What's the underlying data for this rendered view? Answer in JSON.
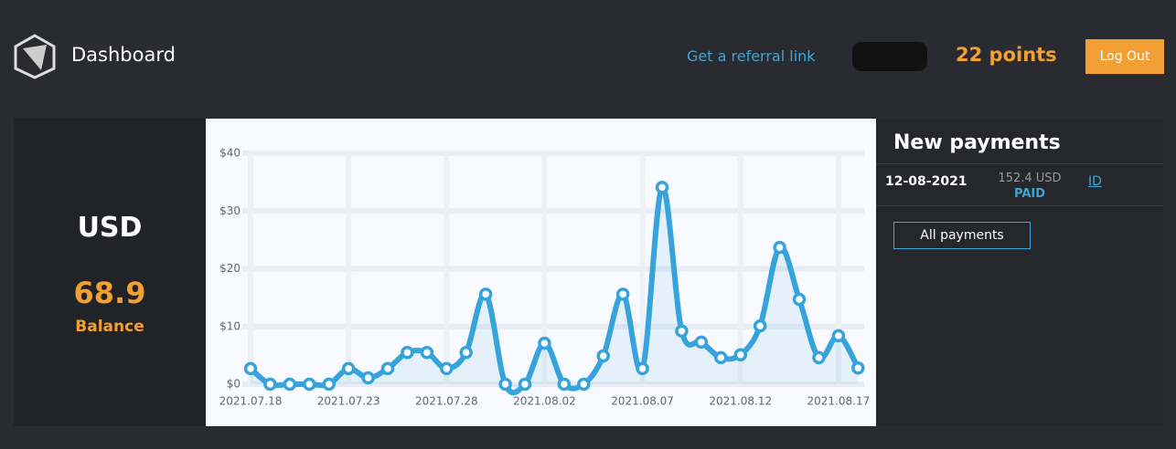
{
  "header": {
    "title": "Dashboard",
    "referral": "Get a referral link",
    "points": "22 points",
    "logout": "Log Out"
  },
  "balance": {
    "currency": "USD",
    "amount": 68.9,
    "label": "Balance"
  },
  "payments": {
    "title": "New payments",
    "rows": [
      {
        "date": "12-08-2021",
        "amount": "152.4 USD",
        "status": "PAID",
        "id": "ID"
      }
    ],
    "all": "All payments"
  },
  "chart_data": {
    "type": "line",
    "color": "#36a3dc",
    "categories": [
      "2021.07.18",
      null,
      null,
      null,
      null,
      "2021.07.23",
      null,
      null,
      null,
      null,
      "2021.07.28",
      null,
      null,
      null,
      null,
      "2021.08.02",
      null,
      null,
      null,
      null,
      "2021.08.07",
      null,
      null,
      null,
      null,
      "2021.08.12",
      null,
      null,
      null,
      null,
      "2021.08.17",
      null
    ],
    "values": [
      2.7,
      0,
      0,
      0,
      0,
      2.7,
      1.1,
      2.7,
      5.5,
      5.5,
      2.7,
      5.5,
      15.6,
      0,
      0,
      7.1,
      0,
      0,
      4.9,
      15.6,
      2.7,
      34.1,
      9.2,
      7.3,
      4.6,
      5.1,
      10.1,
      23.7,
      14.7,
      4.6,
      8.4,
      2.8
    ],
    "ylim": [
      0,
      40
    ],
    "yticks": [
      {
        "value": 0,
        "label": "$0"
      },
      {
        "value": 10,
        "label": "$10"
      },
      {
        "value": 20,
        "label": "$20"
      },
      {
        "value": 30,
        "label": "$30"
      },
      {
        "value": 40,
        "label": "$40"
      }
    ],
    "grid": true
  }
}
